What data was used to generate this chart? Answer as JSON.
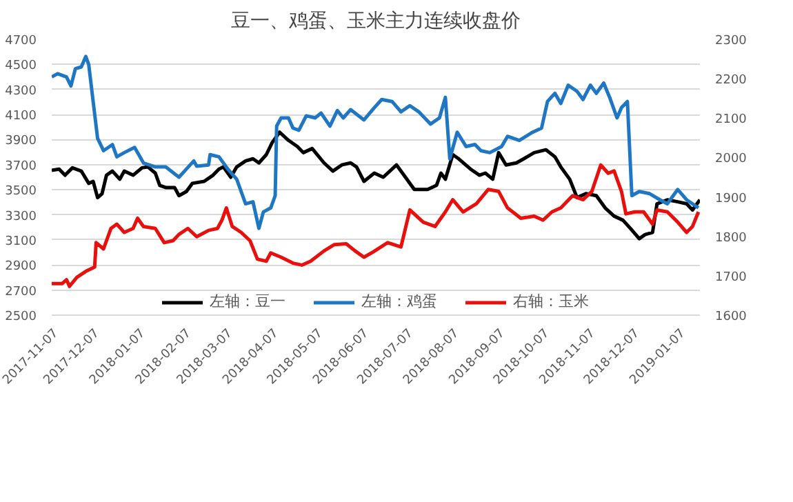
{
  "chart_data": {
    "type": "line",
    "title": "豆一、鸡蛋、玉米主力连续收盘价",
    "xlim": [
      "2017-11-07",
      "2019-01-19"
    ],
    "xticks": [
      "2017-11-07",
      "2017-12-07",
      "2018-01-07",
      "2018-02-07",
      "2018-03-07",
      "2018-04-07",
      "2018-05-07",
      "2018-06-07",
      "2018-07-07",
      "2018-08-07",
      "2018-09-07",
      "2018-10-07",
      "2018-11-07",
      "2018-12-07",
      "2019-01-07"
    ],
    "ylim": [
      2500,
      4700
    ],
    "yticks": [
      2500,
      2700,
      2900,
      3100,
      3300,
      3500,
      3700,
      3900,
      4100,
      4300,
      4500,
      4700
    ],
    "y2lim": [
      1600,
      2300
    ],
    "y2ticks": [
      1600,
      1700,
      1800,
      1900,
      2000,
      2100,
      2200,
      2300
    ],
    "grid": "y",
    "legend": "bottom",
    "line_style": "solid",
    "marker": "none",
    "series": [
      {
        "name": "左轴：豆一",
        "color": "#000000",
        "x": [
          "2017-11-07",
          "2017-11-12",
          "2017-11-16",
          "2017-11-21",
          "2017-11-27",
          "2017-12-02",
          "2017-12-05",
          "2017-12-08",
          "2017-12-11",
          "2017-12-14",
          "2017-12-18",
          "2017-12-23",
          "2017-12-26",
          "2018-01-01",
          "2018-01-07",
          "2018-01-11",
          "2018-01-16",
          "2018-01-19",
          "2018-01-23",
          "2018-01-29",
          "2018-02-01",
          "2018-02-06",
          "2018-02-10",
          "2018-02-18",
          "2018-02-24",
          "2018-02-28",
          "2018-03-03",
          "2018-03-08",
          "2018-03-12",
          "2018-03-18",
          "2018-03-23",
          "2018-03-27",
          "2018-04-01",
          "2018-04-05",
          "2018-04-10",
          "2018-04-16",
          "2018-04-22",
          "2018-04-26",
          "2018-05-02",
          "2018-05-10",
          "2018-05-16",
          "2018-05-22",
          "2018-05-28",
          "2018-06-01",
          "2018-06-06",
          "2018-06-13",
          "2018-06-19",
          "2018-06-28",
          "2018-07-04",
          "2018-07-10",
          "2018-07-19",
          "2018-07-25",
          "2018-07-28",
          "2018-07-31",
          "2018-08-05",
          "2018-08-09",
          "2018-08-17",
          "2018-08-23",
          "2018-08-27",
          "2018-09-01",
          "2018-09-05",
          "2018-09-10",
          "2018-09-17",
          "2018-09-22",
          "2018-09-29",
          "2018-10-07",
          "2018-10-13",
          "2018-10-17",
          "2018-10-23",
          "2018-10-28",
          "2018-11-03",
          "2018-11-10",
          "2018-11-16",
          "2018-11-22",
          "2018-11-28",
          "2018-12-03",
          "2018-12-09",
          "2018-12-13",
          "2018-12-18",
          "2018-12-21",
          "2018-12-28",
          "2019-01-04",
          "2019-01-10",
          "2019-01-14",
          "2019-01-19"
        ],
        "values": [
          3655,
          3665,
          3616,
          3675,
          3649,
          3551,
          3567,
          3437,
          3469,
          3616,
          3649,
          3584,
          3649,
          3616,
          3675,
          3682,
          3633,
          3535,
          3518,
          3518,
          3453,
          3486,
          3551,
          3567,
          3616,
          3665,
          3682,
          3600,
          3682,
          3730,
          3747,
          3714,
          3780,
          3877,
          3959,
          3894,
          3845,
          3796,
          3829,
          3714,
          3649,
          3698,
          3714,
          3682,
          3567,
          3633,
          3600,
          3698,
          3600,
          3502,
          3502,
          3535,
          3633,
          3584,
          3780,
          3747,
          3665,
          3616,
          3633,
          3584,
          3796,
          3698,
          3714,
          3747,
          3796,
          3819,
          3763,
          3682,
          3584,
          3437,
          3469,
          3453,
          3355,
          3290,
          3257,
          3192,
          3110,
          3143,
          3159,
          3388,
          3420,
          3404,
          3388,
          3339,
          3420
        ]
      },
      {
        "name": "左轴：鸡蛋",
        "color": "#1f77c4",
        "x": [
          "2017-11-07",
          "2017-11-11",
          "2017-11-17",
          "2017-11-20",
          "2017-11-23",
          "2017-11-27",
          "2017-11-30",
          "2017-12-02",
          "2017-12-05",
          "2017-12-08",
          "2017-12-12",
          "2017-12-18",
          "2017-12-21",
          "2017-12-26",
          "2018-01-02",
          "2018-01-08",
          "2018-01-16",
          "2018-01-23",
          "2018-02-01",
          "2018-02-06",
          "2018-02-11",
          "2018-02-13",
          "2018-02-21",
          "2018-02-22",
          "2018-02-28",
          "2018-03-06",
          "2018-03-12",
          "2018-03-18",
          "2018-03-23",
          "2018-03-27",
          "2018-03-30",
          "2018-04-04",
          "2018-04-07",
          "2018-04-08",
          "2018-04-11",
          "2018-04-16",
          "2018-04-19",
          "2018-04-23",
          "2018-04-28",
          "2018-05-04",
          "2018-05-08",
          "2018-05-14",
          "2018-05-19",
          "2018-05-23",
          "2018-05-28",
          "2018-06-06",
          "2018-06-13",
          "2018-06-18",
          "2018-06-25",
          "2018-07-01",
          "2018-07-07",
          "2018-07-13",
          "2018-07-21",
          "2018-07-27",
          "2018-07-31",
          "2018-08-03",
          "2018-08-08",
          "2018-08-14",
          "2018-08-20",
          "2018-08-24",
          "2018-08-30",
          "2018-09-07",
          "2018-09-11",
          "2018-09-19",
          "2018-09-28",
          "2018-10-04",
          "2018-10-08",
          "2018-10-13",
          "2018-10-17",
          "2018-10-22",
          "2018-10-28",
          "2018-11-01",
          "2018-11-06",
          "2018-11-10",
          "2018-11-15",
          "2018-11-19",
          "2018-11-24",
          "2018-11-27",
          "2018-12-01",
          "2018-12-04",
          "2018-12-09",
          "2018-12-16",
          "2018-12-23",
          "2018-12-28",
          "2019-01-04",
          "2019-01-10",
          "2019-01-14",
          "2019-01-18"
        ],
        "values": [
          4400,
          4426,
          4400,
          4328,
          4465,
          4480,
          4563,
          4500,
          4204,
          3910,
          3812,
          3860,
          3763,
          3796,
          3838,
          3714,
          3682,
          3682,
          3600,
          3665,
          3730,
          3688,
          3698,
          3780,
          3763,
          3665,
          3584,
          3388,
          3404,
          3192,
          3323,
          3355,
          3453,
          4008,
          4073,
          4073,
          3992,
          3975,
          4090,
          4073,
          4112,
          4008,
          4132,
          4073,
          4139,
          4057,
          4155,
          4220,
          4204,
          4122,
          4171,
          4122,
          4024,
          4073,
          4237,
          3747,
          3959,
          3845,
          3861,
          3812,
          3796,
          3845,
          3926,
          3894,
          3959,
          3992,
          4204,
          4269,
          4188,
          4334,
          4285,
          4220,
          4334,
          4269,
          4351,
          4237,
          4073,
          4155,
          4204,
          3453,
          3486,
          3469,
          3420,
          3388,
          3502,
          3420,
          3388,
          3355
        ]
      },
      {
        "name": "右轴：玉米",
        "color": "#e8100c",
        "axis": "y2",
        "x": [
          "2017-11-07",
          "2017-11-14",
          "2017-11-17",
          "2017-11-19",
          "2017-11-24",
          "2017-11-30",
          "2017-12-06",
          "2017-12-07",
          "2017-12-12",
          "2017-12-17",
          "2017-12-21",
          "2017-12-26",
          "2018-01-01",
          "2018-01-04",
          "2018-01-08",
          "2018-01-16",
          "2018-01-22",
          "2018-01-28",
          "2018-02-01",
          "2018-02-07",
          "2018-02-13",
          "2018-02-21",
          "2018-02-27",
          "2018-03-02",
          "2018-03-05",
          "2018-03-09",
          "2018-03-15",
          "2018-03-21",
          "2018-03-26",
          "2018-04-01",
          "2018-04-04",
          "2018-04-11",
          "2018-04-19",
          "2018-04-25",
          "2018-05-01",
          "2018-05-10",
          "2018-05-17",
          "2018-05-25",
          "2018-05-31",
          "2018-06-06",
          "2018-06-12",
          "2018-06-22",
          "2018-07-01",
          "2018-07-07",
          "2018-07-16",
          "2018-07-24",
          "2018-07-31",
          "2018-08-05",
          "2018-08-12",
          "2018-08-21",
          "2018-08-29",
          "2018-09-05",
          "2018-09-11",
          "2018-09-20",
          "2018-09-29",
          "2018-10-05",
          "2018-10-11",
          "2018-10-17",
          "2018-10-25",
          "2018-11-01",
          "2018-11-07",
          "2018-11-13",
          "2018-11-18",
          "2018-11-22",
          "2018-11-27",
          "2018-11-30",
          "2018-12-06",
          "2018-12-12",
          "2018-12-18",
          "2018-12-21",
          "2018-12-28",
          "2019-01-04",
          "2019-01-10",
          "2019-01-14",
          "2019-01-18"
        ],
        "values": [
          1680,
          1680,
          1690,
          1673,
          1696,
          1711,
          1722,
          1784,
          1768,
          1820,
          1831,
          1810,
          1820,
          1846,
          1825,
          1820,
          1784,
          1789,
          1805,
          1820,
          1799,
          1815,
          1820,
          1841,
          1872,
          1825,
          1810,
          1789,
          1742,
          1737,
          1758,
          1747,
          1732,
          1727,
          1737,
          1763,
          1779,
          1781,
          1763,
          1747,
          1760,
          1784,
          1773,
          1867,
          1836,
          1825,
          1862,
          1893,
          1862,
          1883,
          1919,
          1914,
          1872,
          1846,
          1851,
          1841,
          1862,
          1872,
          1903,
          1893,
          1914,
          1981,
          1960,
          1966,
          1914,
          1857,
          1862,
          1862,
          1831,
          1867,
          1862,
          1836,
          1810,
          1825,
          1862
        ]
      }
    ]
  }
}
